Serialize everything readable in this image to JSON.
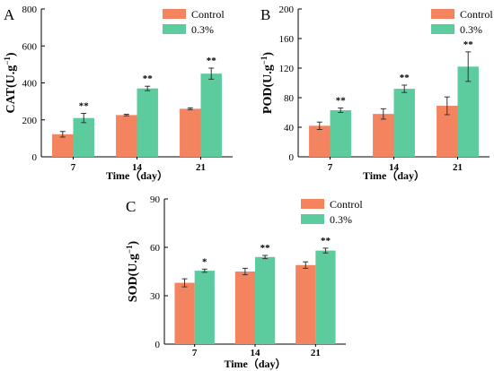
{
  "colors": {
    "control": "#f4845f",
    "treatment": "#5ccb9d",
    "axis": "#000000",
    "errorbar": "#333333"
  },
  "chart_data": [
    {
      "type": "bar",
      "panel": "A",
      "categories": [
        "7",
        "14",
        "21"
      ],
      "xlabel": "Time（day）",
      "ylabel_main": "CAT(U.g",
      "ylabel_sup": "−1",
      "ylabel_end": ")",
      "ylim": [
        0,
        800
      ],
      "yticks": [
        "0",
        "200",
        "400",
        "600",
        "800"
      ],
      "legend_position": "top-right",
      "grid": false,
      "series": [
        {
          "name": "Control",
          "values": [
            122,
            226,
            260
          ],
          "errors": [
            15,
            4,
            5
          ],
          "sig": [
            "",
            "",
            ""
          ]
        },
        {
          "name": "0.3%",
          "values": [
            210,
            370,
            450
          ],
          "errors": [
            25,
            12,
            30
          ],
          "sig": [
            "**",
            "**",
            "**"
          ]
        }
      ]
    },
    {
      "type": "bar",
      "panel": "B",
      "categories": [
        "7",
        "14",
        "21"
      ],
      "xlabel": "Time（day）",
      "ylabel_main": "POD(U.g",
      "ylabel_sup": "−1",
      "ylabel_end": ")",
      "ylim": [
        0,
        200
      ],
      "yticks": [
        "0",
        "40",
        "80",
        "120",
        "160",
        "200"
      ],
      "legend_position": "top-right",
      "grid": false,
      "series": [
        {
          "name": "Control",
          "values": [
            42,
            58,
            69
          ],
          "errors": [
            5,
            7,
            12
          ],
          "sig": [
            "",
            "",
            ""
          ]
        },
        {
          "name": "0.3%",
          "values": [
            63,
            92,
            122
          ],
          "errors": [
            3,
            5,
            20
          ],
          "sig": [
            "**",
            "**",
            "**"
          ]
        }
      ]
    },
    {
      "type": "bar",
      "panel": "C",
      "categories": [
        "7",
        "14",
        "21"
      ],
      "xlabel": "Time（day）",
      "ylabel_main": "SOD(U.g",
      "ylabel_sup": "−1",
      "ylabel_end": ")",
      "ylim": [
        0,
        90
      ],
      "yticks": [
        "0",
        "30",
        "60",
        "90"
      ],
      "legend_position": "top-left",
      "grid": false,
      "series": [
        {
          "name": "Control",
          "values": [
            38,
            45,
            49
          ],
          "errors": [
            2.5,
            2.0,
            2.0
          ],
          "sig": [
            "",
            "",
            ""
          ]
        },
        {
          "name": "0.3%",
          "values": [
            45.5,
            54,
            58
          ],
          "errors": [
            1.0,
            1.0,
            1.5
          ],
          "sig": [
            "*",
            "**",
            "**"
          ]
        }
      ]
    }
  ]
}
